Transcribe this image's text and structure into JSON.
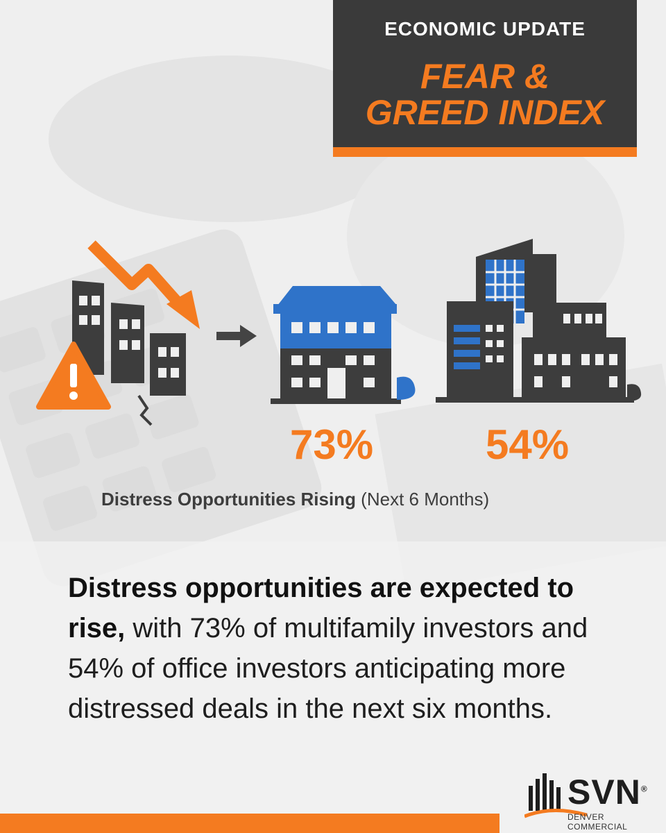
{
  "header": {
    "kicker": "ECONOMIC UPDATE",
    "title_line1": "FEAR &",
    "title_line2": "GREED INDEX"
  },
  "stats": {
    "multifamily_pct": "73%",
    "office_pct": "54%"
  },
  "caption": {
    "bold": "Distress Opportunities Rising",
    "rest": " (Next 6 Months)"
  },
  "body": {
    "bold": "Distress opportunities are expected to rise,",
    "rest": " with 73% of multifamily investors and 54% of office investors anticipating more distressed deals in the next six months."
  },
  "logo": {
    "name": "SVN",
    "registered": "®",
    "subtitle": "DENVER COMMERCIAL"
  },
  "colors": {
    "accent": "#f47b20",
    "dark": "#3a3a3a",
    "blue": "#2f73c9"
  },
  "icons": [
    "warning-icon",
    "down-arrow-icon",
    "right-arrow-icon",
    "multifamily-building-icon",
    "office-buildings-icon",
    "crumbling-building-icon"
  ]
}
